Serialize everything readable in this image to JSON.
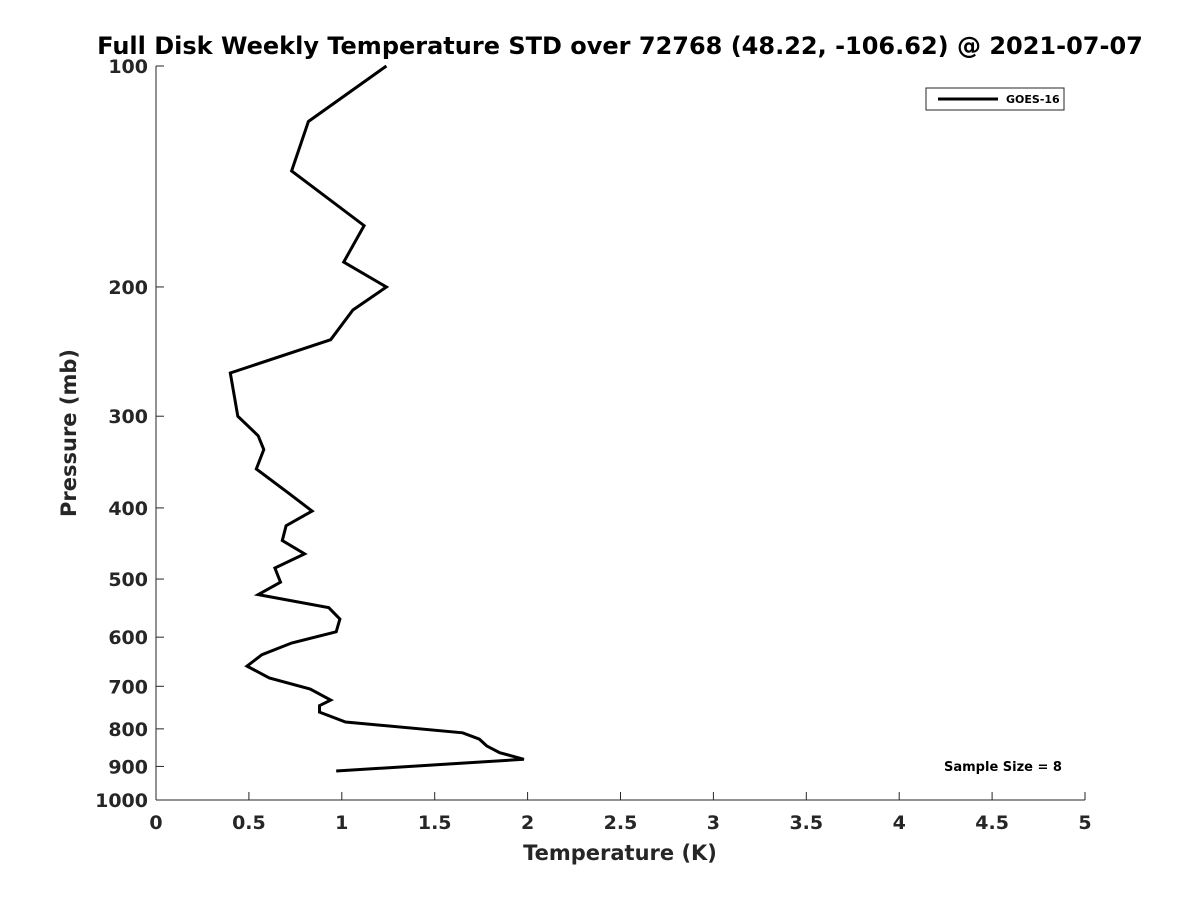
{
  "chart_data": {
    "type": "line",
    "title": "Full Disk Weekly Temperature STD over 72768 (48.22, -106.62) @ 2021-07-07",
    "xlabel": "Temperature (K)",
    "ylabel": "Pressure (mb)",
    "xlim": [
      0,
      5
    ],
    "ylim": [
      1000,
      100
    ],
    "y_scale": "log",
    "x_ticks": [
      "0",
      "0.5",
      "1",
      "1.5",
      "2",
      "2.5",
      "3",
      "3.5",
      "4",
      "4.5",
      "5"
    ],
    "y_ticks": [
      "100",
      "200",
      "300",
      "400",
      "500",
      "600",
      "700",
      "800",
      "900",
      "1000"
    ],
    "grid": false,
    "legend_position": "top-right",
    "annotation": "Sample Size = 8",
    "series": [
      {
        "name": "GOES-16",
        "color": "#000000",
        "points": [
          [
            1.24,
            100
          ],
          [
            0.82,
            119
          ],
          [
            0.73,
            139
          ],
          [
            1.12,
            165
          ],
          [
            1.01,
            185
          ],
          [
            1.24,
            200
          ],
          [
            1.06,
            215
          ],
          [
            0.94,
            236
          ],
          [
            0.4,
            262
          ],
          [
            0.42,
            280
          ],
          [
            0.44,
            300
          ],
          [
            0.55,
            319
          ],
          [
            0.58,
            333
          ],
          [
            0.54,
            354
          ],
          [
            0.72,
            383
          ],
          [
            0.84,
            404
          ],
          [
            0.7,
            423
          ],
          [
            0.68,
            443
          ],
          [
            0.8,
            462
          ],
          [
            0.64,
            483
          ],
          [
            0.67,
            505
          ],
          [
            0.55,
            525
          ],
          [
            0.93,
            547
          ],
          [
            0.99,
            567
          ],
          [
            0.97,
            590
          ],
          [
            0.73,
            611
          ],
          [
            0.57,
            634
          ],
          [
            0.49,
            657
          ],
          [
            0.61,
            682
          ],
          [
            0.83,
            706
          ],
          [
            0.94,
            731
          ],
          [
            0.88,
            744
          ],
          [
            0.88,
            759
          ],
          [
            1.02,
            783
          ],
          [
            1.65,
            810
          ],
          [
            1.74,
            826
          ],
          [
            1.78,
            844
          ],
          [
            1.85,
            862
          ],
          [
            1.98,
            880
          ],
          [
            0.97,
            913
          ]
        ]
      }
    ]
  }
}
